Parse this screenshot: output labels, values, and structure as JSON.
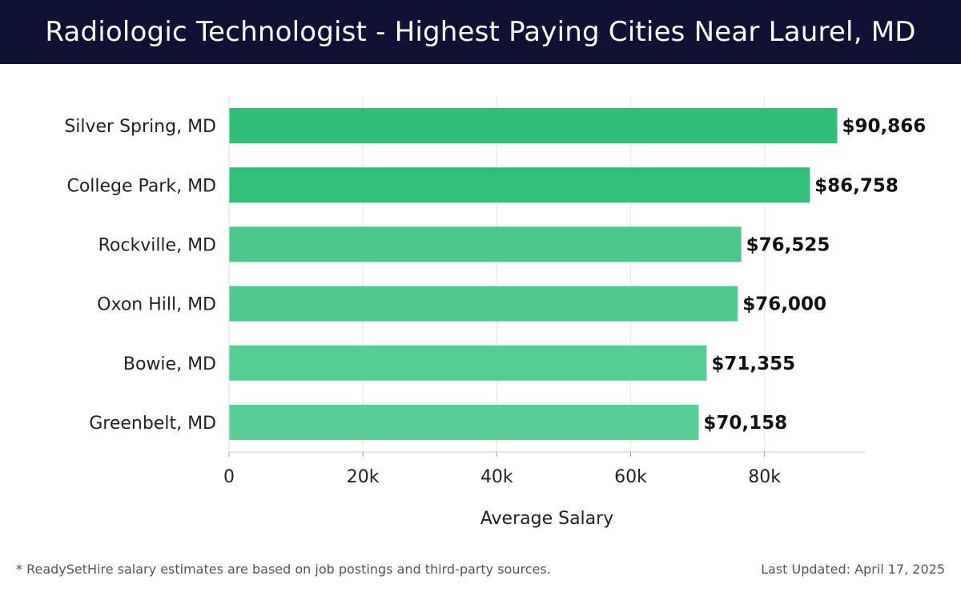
{
  "header": {
    "title": "Radiologic Technologist - Highest Paying Cities Near Laurel, MD"
  },
  "chart_data": {
    "type": "bar",
    "orientation": "horizontal",
    "title": "Radiologic Technologist - Highest Paying Cities Near Laurel, MD",
    "xlabel": "Average Salary",
    "ylabel": "",
    "categories": [
      "Silver Spring, MD",
      "College Park, MD",
      "Rockville, MD",
      "Oxon Hill, MD",
      "Bowie, MD",
      "Greenbelt, MD"
    ],
    "values": [
      90866,
      86758,
      76525,
      76000,
      71355,
      70158
    ],
    "value_labels": [
      "$90,866",
      "$86,758",
      "$76,525",
      "$76,000",
      "$71,355",
      "$70,158"
    ],
    "xlim": [
      0,
      95000
    ],
    "xticks": [
      0,
      20000,
      40000,
      60000,
      80000
    ],
    "xtick_labels": [
      "0",
      "20k",
      "40k",
      "60k",
      "80k"
    ],
    "grid": true,
    "bar_colors": [
      "#2cbf77",
      "#2fc17a",
      "#4bc98c",
      "#4dca8d",
      "#55cd93",
      "#57ce95"
    ]
  },
  "footer": {
    "note": "* ReadySetHire salary estimates are based on job postings and third-party sources.",
    "updated": "Last Updated: April 17, 2025"
  }
}
